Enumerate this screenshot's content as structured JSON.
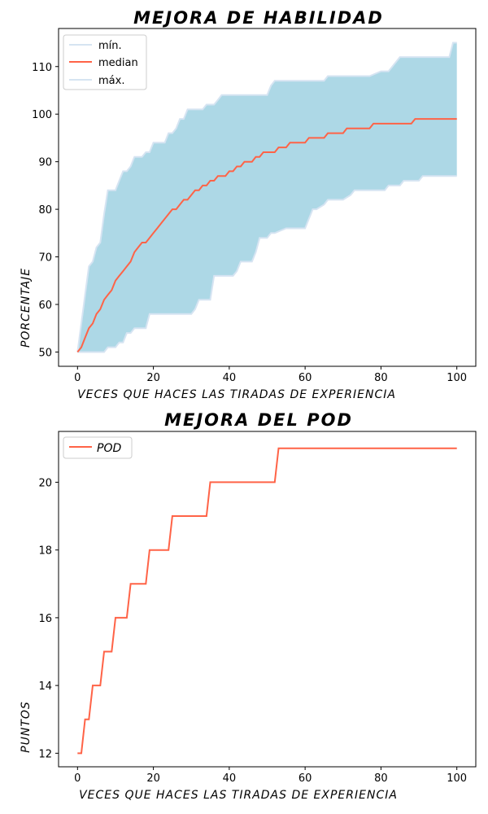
{
  "chart_data": [
    {
      "type": "area",
      "title": "MEJORA DE HABILIDAD",
      "xlabel": "VECES QUE HACES LAS TIRADAS DE EXPERIENCIA",
      "ylabel": "PORCENTAJE",
      "xlim": [
        -5,
        105
      ],
      "ylim": [
        47,
        118
      ],
      "xticks": [
        0,
        20,
        40,
        60,
        80,
        100
      ],
      "yticks": [
        50,
        60,
        70,
        80,
        90,
        100,
        110
      ],
      "colors": {
        "band": "#add8e6",
        "band_edge": "#d6e4f2",
        "median": "#ff6347"
      },
      "legend": [
        "mín.",
        "median",
        "máx."
      ],
      "series": [
        {
          "name": "mín.",
          "x": [
            0,
            1,
            2,
            3,
            4,
            5,
            6,
            7,
            8,
            9,
            10,
            11,
            12,
            13,
            14,
            15,
            16,
            17,
            18,
            19,
            20,
            25,
            30,
            31,
            32,
            35,
            36,
            40,
            41,
            42,
            43,
            46,
            47,
            48,
            50,
            51,
            52,
            55,
            60,
            61,
            62,
            63,
            65,
            66,
            67,
            70,
            72,
            73,
            75,
            80,
            81,
            82,
            85,
            86,
            87,
            90,
            91,
            100
          ],
          "values": [
            50,
            50,
            50,
            50,
            50,
            50,
            50,
            50,
            51,
            51,
            51,
            52,
            52,
            54,
            54,
            55,
            55,
            55,
            55,
            58,
            58,
            58,
            58,
            59,
            61,
            61,
            66,
            66,
            66,
            67,
            69,
            69,
            71,
            74,
            74,
            75,
            75,
            76,
            76,
            78,
            80,
            80,
            81,
            82,
            82,
            82,
            83,
            84,
            84,
            84,
            84,
            85,
            85,
            86,
            86,
            86,
            87,
            87
          ]
        },
        {
          "name": "median",
          "x": [
            0,
            1,
            2,
            3,
            4,
            5,
            6,
            7,
            8,
            9,
            10,
            11,
            12,
            13,
            14,
            15,
            16,
            17,
            18,
            19,
            20,
            21,
            22,
            23,
            24,
            25,
            26,
            27,
            28,
            29,
            30,
            31,
            32,
            33,
            34,
            35,
            36,
            37,
            38,
            39,
            40,
            41,
            42,
            43,
            44,
            45,
            46,
            47,
            48,
            49,
            50,
            51,
            52,
            53,
            54,
            55,
            56,
            57,
            58,
            59,
            60,
            61,
            62,
            63,
            64,
            65,
            66,
            67,
            68,
            69,
            70,
            71,
            72,
            73,
            74,
            75,
            76,
            77,
            78,
            79,
            80,
            81,
            82,
            83,
            84,
            85,
            86,
            87,
            88,
            89,
            90,
            91,
            92,
            93,
            94,
            95,
            96,
            97,
            98,
            99,
            100
          ],
          "values": [
            50,
            51,
            53,
            55,
            56,
            58,
            59,
            61,
            62,
            63,
            65,
            66,
            67,
            68,
            69,
            71,
            72,
            73,
            73,
            74,
            75,
            76,
            77,
            78,
            79,
            80,
            80,
            81,
            82,
            82,
            83,
            84,
            84,
            85,
            85,
            86,
            86,
            87,
            87,
            87,
            88,
            88,
            89,
            89,
            90,
            90,
            90,
            91,
            91,
            92,
            92,
            92,
            92,
            93,
            93,
            93,
            94,
            94,
            94,
            94,
            94,
            95,
            95,
            95,
            95,
            95,
            96,
            96,
            96,
            96,
            96,
            97,
            97,
            97,
            97,
            97,
            97,
            97,
            98,
            98,
            98,
            98,
            98,
            98,
            98,
            98,
            98,
            98,
            98,
            99,
            99,
            99,
            99,
            99,
            99,
            99,
            99,
            99,
            99,
            99,
            99
          ]
        },
        {
          "name": "máx.",
          "x": [
            0,
            1,
            2,
            3,
            4,
            5,
            6,
            7,
            8,
            9,
            10,
            11,
            12,
            13,
            14,
            15,
            16,
            17,
            18,
            19,
            20,
            21,
            22,
            23,
            24,
            25,
            26,
            27,
            28,
            29,
            30,
            31,
            32,
            33,
            34,
            35,
            36,
            37,
            38,
            39,
            40,
            45,
            50,
            51,
            52,
            55,
            60,
            62,
            65,
            66,
            70,
            75,
            76,
            77,
            80,
            81,
            82,
            85,
            90,
            95,
            98,
            99,
            100
          ],
          "values": [
            50,
            56,
            62,
            68,
            69,
            72,
            73,
            79,
            84,
            84,
            84,
            86,
            88,
            88,
            89,
            91,
            91,
            91,
            92,
            92,
            94,
            94,
            94,
            94,
            96,
            96,
            97,
            99,
            99,
            101,
            101,
            101,
            101,
            101,
            102,
            102,
            102,
            103,
            104,
            104,
            104,
            104,
            104,
            106,
            107,
            107,
            107,
            107,
            107,
            108,
            108,
            108,
            108,
            108,
            109,
            109,
            109,
            112,
            112,
            112,
            112,
            115,
            115
          ]
        }
      ]
    },
    {
      "type": "line",
      "title": "MEJORA DEL POD",
      "xlabel": "VECES QUE HACES LAS TIRADAS DE EXPERIENCIA",
      "ylabel": "PUNTOS",
      "xlim": [
        -5,
        105
      ],
      "ylim": [
        11.6,
        21.5
      ],
      "xticks": [
        0,
        20,
        40,
        60,
        80,
        100
      ],
      "yticks": [
        12,
        14,
        16,
        18,
        20
      ],
      "colors": {
        "line": "#ff6347"
      },
      "legend": [
        "POD"
      ],
      "series": [
        {
          "name": "POD",
          "x": [
            0,
            1,
            2,
            3,
            4,
            5,
            6,
            7,
            8,
            9,
            10,
            11,
            12,
            13,
            14,
            15,
            16,
            17,
            18,
            19,
            20,
            21,
            22,
            23,
            24,
            25,
            26,
            27,
            28,
            29,
            30,
            31,
            32,
            33,
            34,
            35,
            36,
            37,
            38,
            39,
            40,
            41,
            42,
            43,
            44,
            45,
            46,
            47,
            48,
            49,
            50,
            51,
            52,
            53,
            54,
            55,
            60,
            65,
            70,
            75,
            80,
            85,
            90,
            95,
            100
          ],
          "values": [
            12,
            12,
            13,
            13,
            14,
            14,
            14,
            15,
            15,
            15,
            16,
            16,
            16,
            16,
            17,
            17,
            17,
            17,
            17,
            18,
            18,
            18,
            18,
            18,
            18,
            19,
            19,
            19,
            19,
            19,
            19,
            19,
            19,
            19,
            19,
            20,
            20,
            20,
            20,
            20,
            20,
            20,
            20,
            20,
            20,
            20,
            20,
            20,
            20,
            20,
            20,
            20,
            20,
            21,
            21,
            21,
            21,
            21,
            21,
            21,
            21,
            21,
            21,
            21,
            21
          ]
        }
      ]
    }
  ]
}
